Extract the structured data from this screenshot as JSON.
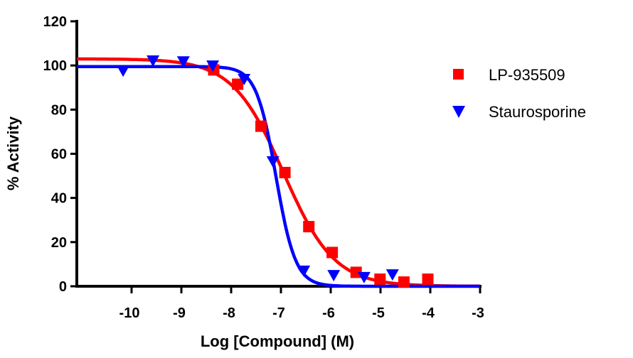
{
  "chart_data": {
    "type": "scatter",
    "title": "",
    "xlabel": "Log [Compound] (M)",
    "ylabel": "% Activity",
    "xlim": [
      -11.1,
      -3
    ],
    "ylim": [
      0,
      120
    ],
    "xticks": [
      -10,
      -9,
      -8,
      -7,
      -6,
      -5,
      -4,
      -3
    ],
    "yticks": [
      0,
      20,
      40,
      60,
      80,
      100,
      120
    ],
    "grid": false,
    "legend_position": "right",
    "series": [
      {
        "name": "LP-935509",
        "color": "#ff0000",
        "marker": "square",
        "x": [
          -8.35,
          -7.87,
          -7.4,
          -6.92,
          -6.44,
          -5.97,
          -5.49,
          -5.01,
          -4.53,
          -4.05
        ],
        "y": [
          98,
          91.5,
          72.5,
          51.5,
          27,
          15.3,
          6.3,
          3.2,
          1.9,
          3.2
        ],
        "fit": {
          "model": "sigmoidal dose-response",
          "top": 103,
          "bottom": 0,
          "logIC50": -6.95,
          "hill": -0.85
        }
      },
      {
        "name": "Staurosporine",
        "color": "#0000ff",
        "marker": "triangle-down",
        "x": [
          -10.17,
          -9.57,
          -8.96,
          -8.37,
          -7.74,
          -7.16,
          -6.54,
          -5.94,
          -5.33,
          -4.76
        ],
        "y": [
          97.4,
          102,
          101.6,
          99.7,
          93.6,
          56.3,
          6.8,
          4.8,
          3.9,
          5.1
        ],
        "fit": {
          "model": "sigmoidal dose-response",
          "top": 99.5,
          "bottom": 0,
          "logIC50": -7.1,
          "hill": -2.2
        }
      }
    ]
  }
}
